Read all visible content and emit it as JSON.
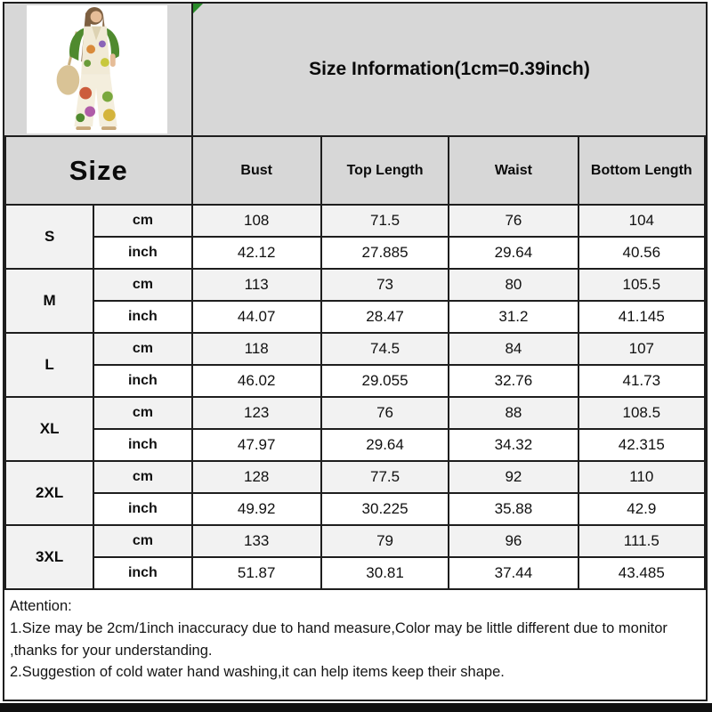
{
  "header": {
    "title": "Size Information(1cm=0.39inch)"
  },
  "product": {
    "image_name": "model-wearing-floral-print-two-piece-outfit"
  },
  "icons": {
    "corner_marker": "green-triangle-marker"
  },
  "table": {
    "size_header": "Size",
    "columns": [
      "Bust",
      "Top Length",
      "Waist",
      "Bottom Length"
    ],
    "unit_labels": [
      "cm",
      "inch"
    ],
    "rows": [
      {
        "size": "S",
        "cm": [
          "108",
          "71.5",
          "76",
          "104"
        ],
        "inch": [
          "42.12",
          "27.885",
          "29.64",
          "40.56"
        ]
      },
      {
        "size": "M",
        "cm": [
          "113",
          "73",
          "80",
          "105.5"
        ],
        "inch": [
          "44.07",
          "28.47",
          "31.2",
          "41.145"
        ]
      },
      {
        "size": "L",
        "cm": [
          "118",
          "74.5",
          "84",
          "107"
        ],
        "inch": [
          "46.02",
          "29.055",
          "32.76",
          "41.73"
        ]
      },
      {
        "size": "XL",
        "cm": [
          "123",
          "76",
          "88",
          "108.5"
        ],
        "inch": [
          "47.97",
          "29.64",
          "34.32",
          "42.315"
        ]
      },
      {
        "size": "2XL",
        "cm": [
          "128",
          "77.5",
          "92",
          "110"
        ],
        "inch": [
          "49.92",
          "30.225",
          "35.88",
          "42.9"
        ]
      },
      {
        "size": "3XL",
        "cm": [
          "133",
          "79",
          "96",
          "111.5"
        ],
        "inch": [
          "51.87",
          "30.81",
          "37.44",
          "43.485"
        ]
      }
    ]
  },
  "attention": {
    "heading": "Attention:",
    "notes": [
      "1.Size may be 2cm/1inch inaccuracy due to hand measure,Color may be little different due to monitor ,thanks for your understanding.",
      "2.Suggestion of cold water hand washing,it can help items keep their shape."
    ]
  },
  "colors": {
    "header_bg": "#d7d7d7",
    "size_cell_bg": "#d3d3d3",
    "cm_row_bg": "#f2f2f2",
    "border": "#1e1e1e",
    "marker": "#2a8c2a",
    "bottom_bar": "#101010"
  }
}
